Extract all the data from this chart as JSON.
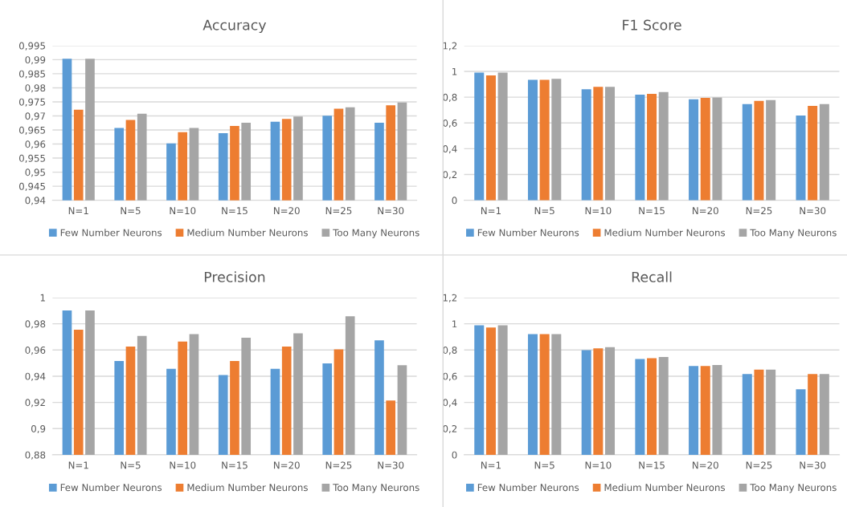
{
  "chart_data": [
    {
      "type": "bar",
      "title": "Accuracy",
      "categories": [
        "N=1",
        "N=5",
        "N=10",
        "N=15",
        "N=20",
        "N=25",
        "N=30"
      ],
      "series": [
        {
          "name": "Few Number Neurons",
          "color": "#5b9bd5",
          "values": [
            0.9903,
            0.9657,
            0.9602,
            0.9639,
            0.9679,
            0.9701,
            0.9676
          ]
        },
        {
          "name": "Medium Number Neurons",
          "color": "#ed7d31",
          "values": [
            0.9722,
            0.9686,
            0.9642,
            0.9664,
            0.9689,
            0.9726,
            0.9738
          ]
        },
        {
          "name": "Too Many Neurons",
          "color": "#a5a5a5",
          "values": [
            0.9903,
            0.9708,
            0.9657,
            0.9676,
            0.9698,
            0.9731,
            0.9748
          ]
        }
      ],
      "ylim": [
        0.94,
        0.995
      ],
      "yticks": [
        {
          "value": 0.94,
          "label": "0,94"
        },
        {
          "value": 0.945,
          "label": "0,945"
        },
        {
          "value": 0.95,
          "label": "0,95"
        },
        {
          "value": 0.955,
          "label": "0,955"
        },
        {
          "value": 0.96,
          "label": "0,96"
        },
        {
          "value": 0.965,
          "label": "0,965"
        },
        {
          "value": 0.97,
          "label": "0,97"
        },
        {
          "value": 0.975,
          "label": "0,975"
        },
        {
          "value": 0.98,
          "label": "0,98"
        },
        {
          "value": 0.985,
          "label": "0,985"
        },
        {
          "value": 0.99,
          "label": "0,99"
        },
        {
          "value": 0.995,
          "label": "0,995"
        }
      ],
      "grid": "y",
      "legend": "bottom"
    },
    {
      "type": "bar",
      "title": "F1 Score",
      "categories": [
        "N=1",
        "N=5",
        "N=10",
        "N=15",
        "N=20",
        "N=25",
        "N=30"
      ],
      "series": [
        {
          "name": "Few Number Neurons",
          "color": "#5b9bd5",
          "values": [
            0.99,
            0.934,
            0.861,
            0.819,
            0.784,
            0.746,
            0.657
          ]
        },
        {
          "name": "Medium Number Neurons",
          "color": "#ed7d31",
          "values": [
            0.969,
            0.934,
            0.88,
            0.825,
            0.794,
            0.771,
            0.732
          ]
        },
        {
          "name": "Too Many Neurons",
          "color": "#a5a5a5",
          "values": [
            0.99,
            0.942,
            0.88,
            0.84,
            0.798,
            0.778,
            0.746
          ]
        }
      ],
      "ylim": [
        0,
        1.2
      ],
      "yticks": [
        0,
        {
          "value": 0.2,
          "label": "0,2"
        },
        {
          "value": 0.4,
          "label": "0,4"
        },
        {
          "value": 0.6,
          "label": "0,6"
        },
        {
          "value": 0.8,
          "label": "0,8"
        },
        1,
        {
          "value": 1.2,
          "label": "1,2"
        }
      ],
      "grid": "y",
      "legend": "bottom"
    },
    {
      "type": "bar",
      "title": "Precision",
      "categories": [
        "N=1",
        "N=5",
        "N=10",
        "N=15",
        "N=20",
        "N=25",
        "N=30"
      ],
      "series": [
        {
          "name": "Few Number Neurons",
          "color": "#5b9bd5",
          "values": [
            0.9902,
            0.9516,
            0.9457,
            0.9409,
            0.9457,
            0.9497,
            0.9674
          ]
        },
        {
          "name": "Medium Number Neurons",
          "color": "#ed7d31",
          "values": [
            0.9755,
            0.9626,
            0.9665,
            0.9516,
            0.9626,
            0.9605,
            0.9214
          ]
        },
        {
          "name": "Too Many Neurons",
          "color": "#a5a5a5",
          "values": [
            0.9902,
            0.9707,
            0.9721,
            0.9694,
            0.9728,
            0.9857,
            0.9484
          ]
        }
      ],
      "ylim": [
        0.88,
        1
      ],
      "yticks": [
        {
          "value": 0.88,
          "label": "0,88"
        },
        {
          "value": 0.9,
          "label": "0,9"
        },
        {
          "value": 0.92,
          "label": "0,92"
        },
        {
          "value": 0.94,
          "label": "0,94"
        },
        {
          "value": 0.96,
          "label": "0,96"
        },
        {
          "value": 0.98,
          "label": "0,98"
        },
        1
      ],
      "grid": "y",
      "legend": "bottom"
    },
    {
      "type": "bar",
      "title": "Recall",
      "categories": [
        "N=1",
        "N=5",
        "N=10",
        "N=15",
        "N=20",
        "N=25",
        "N=30"
      ],
      "series": [
        {
          "name": "Few Number Neurons",
          "color": "#5b9bd5",
          "values": [
            0.988,
            0.921,
            0.798,
            0.731,
            0.677,
            0.617,
            0.5
          ]
        },
        {
          "name": "Medium Number Neurons",
          "color": "#ed7d31",
          "values": [
            0.971,
            0.921,
            0.813,
            0.738,
            0.677,
            0.65,
            0.617
          ]
        },
        {
          "name": "Too Many Neurons",
          "color": "#a5a5a5",
          "values": [
            0.988,
            0.921,
            0.821,
            0.746,
            0.685,
            0.65,
            0.617
          ]
        }
      ],
      "ylim": [
        0,
        1.2
      ],
      "yticks": [
        0,
        {
          "value": 0.2,
          "label": "0,2"
        },
        {
          "value": 0.4,
          "label": "0,4"
        },
        {
          "value": 0.6,
          "label": "0,6"
        },
        {
          "value": 0.8,
          "label": "0,8"
        },
        1,
        {
          "value": 1.2,
          "label": "1,2"
        }
      ],
      "grid": "y",
      "legend": "bottom"
    }
  ]
}
